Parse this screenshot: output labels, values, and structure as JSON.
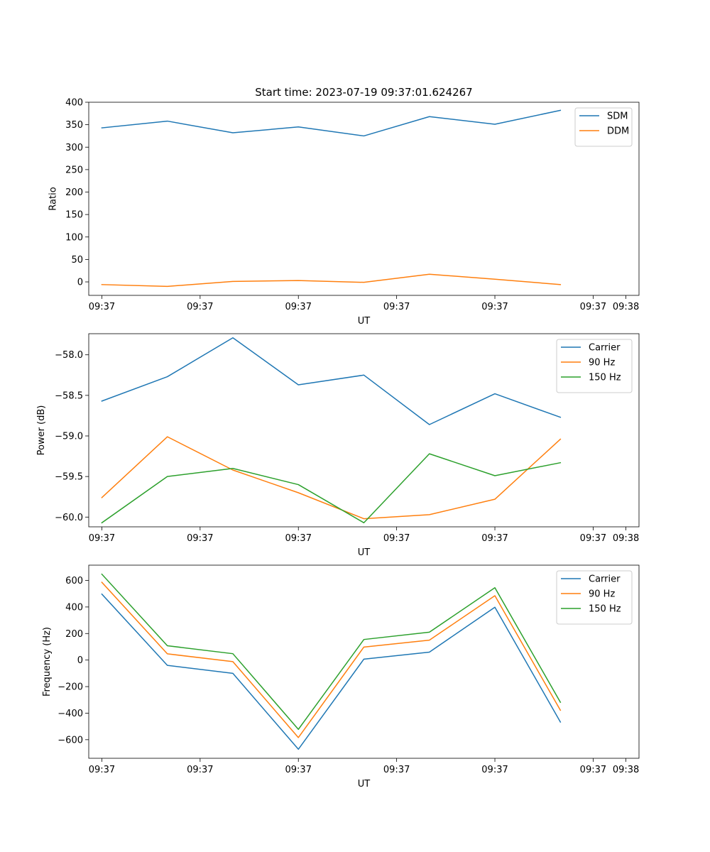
{
  "figure_title": "Start time: 2023-07-19 09:37:01.624267",
  "colors": {
    "blue": "#1f77b4",
    "orange": "#ff7f0e",
    "green": "#2ca02c"
  },
  "chart_data": [
    {
      "type": "line",
      "title": "Start time: 2023-07-19 09:37:01.624267",
      "xlabel": "UT",
      "ylabel": "Ratio",
      "x": [
        1,
        2,
        3,
        4,
        5,
        6,
        7,
        8
      ],
      "xlim": [
        0.8,
        9.2
      ],
      "xticks": [
        1,
        2.5,
        4,
        5.5,
        7,
        8.5,
        9
      ],
      "xtick_labels": [
        "09:37",
        "09:37",
        "09:37",
        "09:37",
        "09:37",
        "09:37",
        "09:38"
      ],
      "ylim": [
        -30,
        400
      ],
      "yticks": [
        0,
        50,
        100,
        150,
        200,
        250,
        300,
        350,
        400
      ],
      "ytick_labels": [
        "0",
        "50",
        "100",
        "150",
        "200",
        "250",
        "300",
        "350",
        "400"
      ],
      "legend_position": "top-right",
      "series": [
        {
          "name": "SDM",
          "color": "#1f77b4",
          "values": [
            343,
            358,
            332,
            345,
            325,
            368,
            351,
            382
          ]
        },
        {
          "name": "DDM",
          "color": "#ff7f0e",
          "values": [
            -6,
            -10,
            1,
            3,
            -1,
            17,
            6,
            -6
          ]
        }
      ]
    },
    {
      "type": "line",
      "title": "",
      "xlabel": "UT",
      "ylabel": "Power (dB)",
      "x": [
        1,
        2,
        3,
        4,
        5,
        6,
        7,
        8
      ],
      "xlim": [
        0.8,
        9.2
      ],
      "xticks": [
        1,
        2.5,
        4,
        5.5,
        7,
        8.5,
        9
      ],
      "xtick_labels": [
        "09:37",
        "09:37",
        "09:37",
        "09:37",
        "09:37",
        "09:37",
        "09:38"
      ],
      "ylim": [
        -60.12,
        -57.74
      ],
      "yticks": [
        -60.0,
        -59.5,
        -59.0,
        -58.5,
        -58.0
      ],
      "ytick_labels": [
        "−60.0",
        "−59.5",
        "−59.0",
        "−58.5",
        "−58.0"
      ],
      "legend_position": "top-right",
      "series": [
        {
          "name": "Carrier",
          "color": "#1f77b4",
          "values": [
            -58.57,
            -58.27,
            -57.79,
            -58.37,
            -58.25,
            -58.86,
            -58.48,
            -58.77
          ]
        },
        {
          "name": "90 Hz",
          "color": "#ff7f0e",
          "values": [
            -59.76,
            -59.01,
            -59.42,
            -59.7,
            -60.02,
            -59.97,
            -59.78,
            -59.04
          ]
        },
        {
          "name": "150 Hz",
          "color": "#2ca02c",
          "values": [
            -60.07,
            -59.5,
            -59.4,
            -59.6,
            -60.07,
            -59.22,
            -59.49,
            -59.33
          ]
        }
      ]
    },
    {
      "type": "line",
      "title": "",
      "xlabel": "UT",
      "ylabel": "Frequency (Hz)",
      "x": [
        1,
        2,
        3,
        4,
        5,
        6,
        7,
        8
      ],
      "xlim": [
        0.8,
        9.2
      ],
      "xticks": [
        1,
        2.5,
        4,
        5.5,
        7,
        8.5,
        9
      ],
      "xtick_labels": [
        "09:37",
        "09:37",
        "09:37",
        "09:37",
        "09:37",
        "09:37",
        "09:38"
      ],
      "ylim": [
        -740,
        715
      ],
      "yticks": [
        -600,
        -400,
        -200,
        0,
        200,
        400,
        600
      ],
      "ytick_labels": [
        "−600",
        "−400",
        "−200",
        "0",
        "200",
        "400",
        "600"
      ],
      "legend_position": "top-right",
      "series": [
        {
          "name": "Carrier",
          "color": "#1f77b4",
          "values": [
            497,
            -40,
            -100,
            -672,
            7,
            60,
            398,
            -467
          ]
        },
        {
          "name": "90 Hz",
          "color": "#ff7f0e",
          "values": [
            586,
            47,
            -12,
            -584,
            98,
            150,
            485,
            -378
          ]
        },
        {
          "name": "150 Hz",
          "color": "#2ca02c",
          "values": [
            647,
            108,
            48,
            -522,
            155,
            210,
            545,
            -318
          ]
        }
      ]
    }
  ]
}
